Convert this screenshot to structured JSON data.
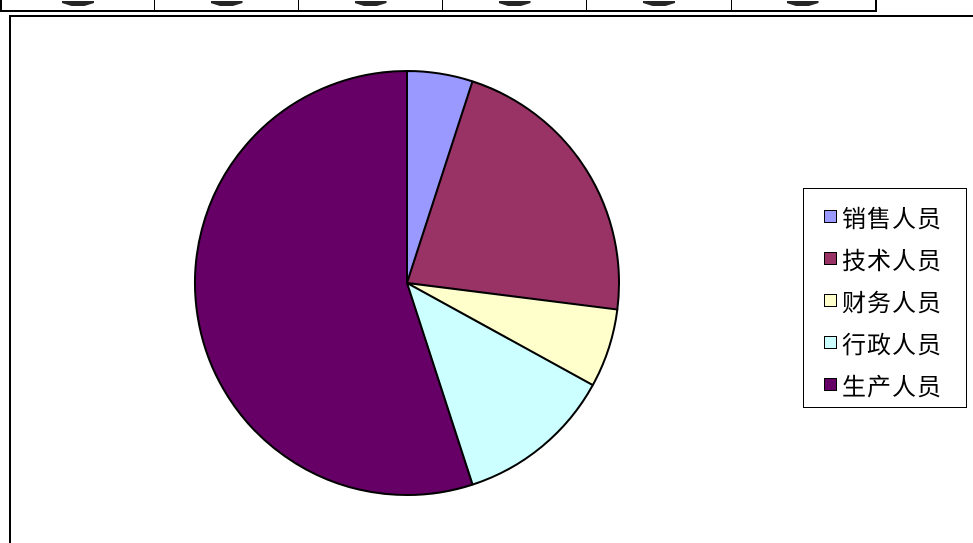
{
  "chart_data": {
    "type": "pie",
    "title": "",
    "categories": [
      "销售人员",
      "技术人员",
      "财务人员",
      "行政人员",
      "生产人员"
    ],
    "values": [
      5,
      22,
      6,
      12,
      55
    ],
    "colors": [
      "#9999FF",
      "#993366",
      "#FFFFCC",
      "#CCFFFF",
      "#660066"
    ],
    "start_angle_deg": 0,
    "direction": "clockwise",
    "legend_position": "right"
  }
}
